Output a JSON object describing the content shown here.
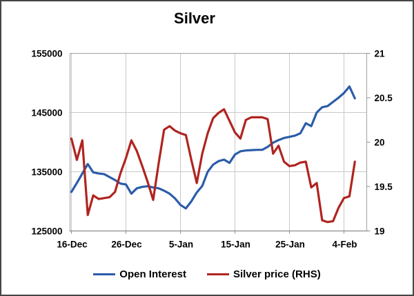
{
  "chart": {
    "title": "Silver",
    "legend": [
      {
        "label": "Open Interest",
        "color": "#2b5ca9"
      },
      {
        "label": "Silver price (RHS)",
        "color": "#b0241f"
      }
    ],
    "colors": {
      "gridline": "#c8c8c8",
      "plot_border": "#a0a0a0",
      "axis_line": "#8c8c8c",
      "label_text": "#000000"
    }
  },
  "chart_data": {
    "type": "line",
    "title": "Silver",
    "x": [
      "16-Dec",
      "17-Dec",
      "18-Dec",
      "19-Dec",
      "20-Dec",
      "21-Dec",
      "22-Dec",
      "23-Dec",
      "24-Dec",
      "25-Dec",
      "26-Dec",
      "27-Dec",
      "28-Dec",
      "29-Dec",
      "30-Dec",
      "31-Dec",
      "1-Jan",
      "2-Jan",
      "3-Jan",
      "4-Jan",
      "5-Jan",
      "6-Jan",
      "7-Jan",
      "8-Jan",
      "9-Jan",
      "10-Jan",
      "11-Jan",
      "12-Jan",
      "13-Jan",
      "14-Jan",
      "15-Jan",
      "16-Jan",
      "17-Jan",
      "18-Jan",
      "19-Jan",
      "20-Jan",
      "21-Jan",
      "22-Jan",
      "23-Jan",
      "24-Jan",
      "25-Jan",
      "26-Jan",
      "27-Jan",
      "28-Jan",
      "29-Jan",
      "30-Jan",
      "31-Jan",
      "1-Feb",
      "2-Feb",
      "3-Feb",
      "4-Feb",
      "5-Feb",
      "6-Feb"
    ],
    "series": [
      {
        "name": "Open Interest",
        "axis": "left",
        "color": "#2b5ca9",
        "values": [
          131600,
          133100,
          134700,
          136300,
          134900,
          134700,
          134600,
          134100,
          133600,
          133000,
          132850,
          131300,
          132200,
          132450,
          132550,
          132350,
          132200,
          131800,
          131300,
          130500,
          129400,
          128800,
          130000,
          131500,
          132600,
          135000,
          136200,
          136800,
          137050,
          136500,
          137900,
          138450,
          138600,
          138650,
          138700,
          138700,
          139200,
          139900,
          140350,
          140700,
          140900,
          141100,
          141500,
          143200,
          142700,
          145000,
          145900,
          146100,
          146800,
          147500,
          148300,
          149400,
          147400
        ]
      },
      {
        "name": "Silver price (RHS)",
        "axis": "right",
        "color": "#b0241f",
        "values": [
          20.04,
          19.8,
          20.02,
          19.18,
          19.4,
          19.36,
          19.37,
          19.38,
          19.44,
          19.65,
          19.82,
          20.02,
          19.9,
          19.73,
          19.55,
          19.35,
          19.76,
          20.14,
          20.18,
          20.13,
          20.1,
          20.08,
          19.8,
          19.54,
          19.87,
          20.1,
          20.27,
          20.33,
          20.37,
          20.24,
          20.11,
          20.04,
          20.25,
          20.28,
          20.28,
          20.28,
          20.26,
          19.87,
          19.96,
          19.78,
          19.73,
          19.74,
          19.77,
          19.78,
          19.49,
          19.54,
          19.12,
          19.1,
          19.11,
          19.26,
          19.37,
          19.39,
          19.78
        ]
      }
    ],
    "left_axis": {
      "min": 125000,
      "max": 155000,
      "tick_values": [
        155000,
        145000,
        135000,
        125000
      ],
      "tick_labels": [
        "155000",
        "145000",
        "135000",
        "125000"
      ]
    },
    "right_axis": {
      "min": 19,
      "max": 21,
      "tick_values": [
        21,
        20.5,
        20,
        19.5,
        19
      ],
      "tick_labels": [
        "21",
        "20.5",
        "20",
        "19.5",
        "19"
      ]
    },
    "x_axis": {
      "tick_indices": [
        0,
        10,
        20,
        30,
        40,
        50
      ],
      "tick_labels": [
        "16-Dec",
        "26-Dec",
        "5-Jan",
        "15-Jan",
        "25-Jan",
        "4-Feb"
      ]
    },
    "grid": true,
    "legend_position": "bottom"
  }
}
